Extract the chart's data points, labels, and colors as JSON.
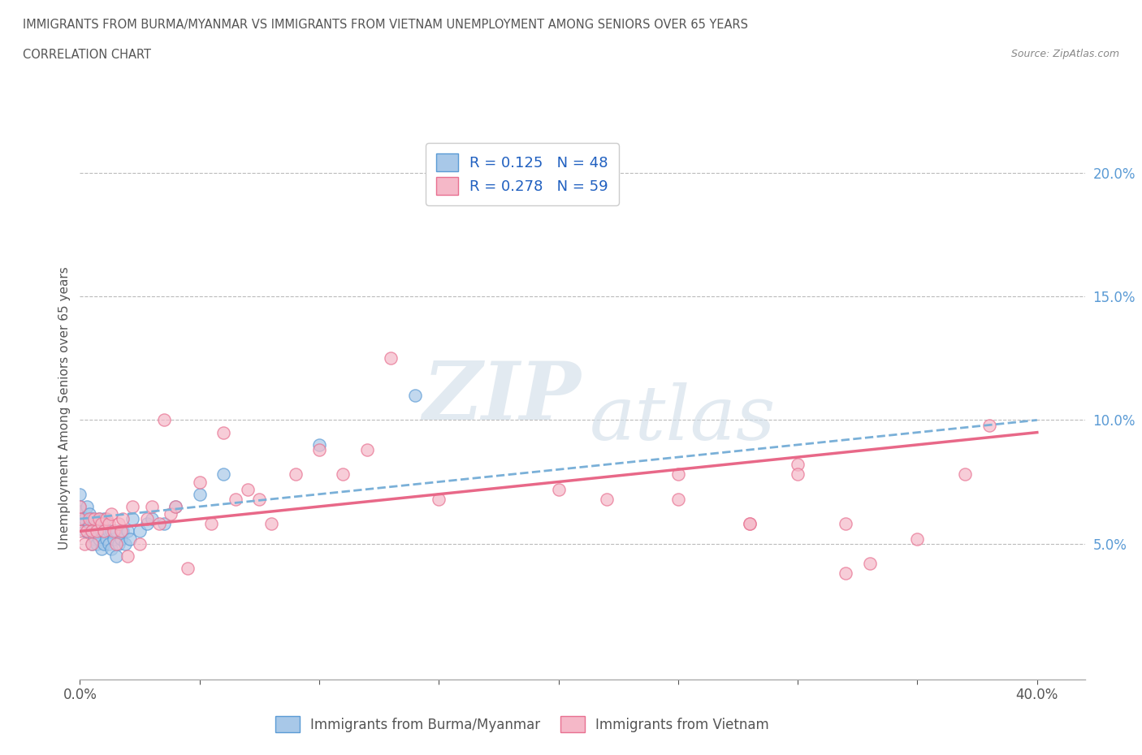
{
  "title_line1": "IMMIGRANTS FROM BURMA/MYANMAR VS IMMIGRANTS FROM VIETNAM UNEMPLOYMENT AMONG SENIORS OVER 65 YEARS",
  "title_line2": "CORRELATION CHART",
  "source_text": "Source: ZipAtlas.com",
  "ylabel": "Unemployment Among Seniors over 65 years",
  "xlim": [
    0.0,
    0.42
  ],
  "ylim": [
    -0.005,
    0.215
  ],
  "yticks": [
    0.05,
    0.1,
    0.15,
    0.2
  ],
  "ytick_labels": [
    "5.0%",
    "10.0%",
    "15.0%",
    "20.0%"
  ],
  "xtick_labels_left": "0.0%",
  "xtick_labels_right": "40.0%",
  "legend_r1": "R = 0.125",
  "legend_n1": "N = 48",
  "legend_r2": "R = 0.278",
  "legend_n2": "N = 59",
  "color_burma": "#a8c8e8",
  "color_vietnam": "#f5b8c8",
  "color_burma_edge": "#5b9bd5",
  "color_vietnam_edge": "#e87090",
  "color_burma_line": "#7ab0d8",
  "color_vietnam_line": "#e86888",
  "watermark_zip": "ZIP",
  "watermark_atlas": "atlas",
  "burma_x": [
    0.0,
    0.0,
    0.0,
    0.0,
    0.002,
    0.002,
    0.003,
    0.003,
    0.004,
    0.004,
    0.005,
    0.005,
    0.005,
    0.006,
    0.006,
    0.007,
    0.007,
    0.008,
    0.008,
    0.009,
    0.009,
    0.01,
    0.01,
    0.01,
    0.011,
    0.012,
    0.012,
    0.013,
    0.013,
    0.014,
    0.015,
    0.015,
    0.016,
    0.017,
    0.018,
    0.019,
    0.02,
    0.021,
    0.022,
    0.025,
    0.028,
    0.03,
    0.035,
    0.04,
    0.05,
    0.06,
    0.1,
    0.14
  ],
  "burma_y": [
    0.06,
    0.063,
    0.065,
    0.07,
    0.055,
    0.06,
    0.055,
    0.065,
    0.058,
    0.062,
    0.05,
    0.055,
    0.06,
    0.052,
    0.058,
    0.05,
    0.058,
    0.052,
    0.06,
    0.048,
    0.055,
    0.05,
    0.055,
    0.06,
    0.052,
    0.05,
    0.055,
    0.048,
    0.055,
    0.052,
    0.045,
    0.055,
    0.05,
    0.052,
    0.055,
    0.05,
    0.055,
    0.052,
    0.06,
    0.055,
    0.058,
    0.06,
    0.058,
    0.065,
    0.07,
    0.078,
    0.09,
    0.11
  ],
  "vietnam_x": [
    0.0,
    0.0,
    0.0,
    0.002,
    0.003,
    0.004,
    0.005,
    0.005,
    0.006,
    0.007,
    0.008,
    0.009,
    0.01,
    0.011,
    0.012,
    0.013,
    0.014,
    0.015,
    0.016,
    0.017,
    0.018,
    0.02,
    0.022,
    0.025,
    0.028,
    0.03,
    0.033,
    0.035,
    0.038,
    0.04,
    0.045,
    0.05,
    0.055,
    0.06,
    0.065,
    0.07,
    0.075,
    0.08,
    0.09,
    0.1,
    0.11,
    0.12,
    0.13,
    0.15,
    0.17,
    0.2,
    0.22,
    0.25,
    0.28,
    0.3,
    0.32,
    0.33,
    0.35,
    0.37,
    0.25,
    0.28,
    0.3,
    0.32,
    0.38
  ],
  "vietnam_y": [
    0.055,
    0.06,
    0.065,
    0.05,
    0.055,
    0.06,
    0.05,
    0.055,
    0.06,
    0.055,
    0.06,
    0.058,
    0.055,
    0.06,
    0.058,
    0.062,
    0.055,
    0.05,
    0.058,
    0.055,
    0.06,
    0.045,
    0.065,
    0.05,
    0.06,
    0.065,
    0.058,
    0.1,
    0.062,
    0.065,
    0.04,
    0.075,
    0.058,
    0.095,
    0.068,
    0.072,
    0.068,
    0.058,
    0.078,
    0.088,
    0.078,
    0.088,
    0.125,
    0.068,
    0.19,
    0.072,
    0.068,
    0.078,
    0.058,
    0.082,
    0.058,
    0.042,
    0.052,
    0.078,
    0.068,
    0.058,
    0.078,
    0.038,
    0.098
  ],
  "burma_line_x0": 0.0,
  "burma_line_x1": 0.4,
  "burma_line_y0": 0.06,
  "burma_line_y1": 0.1,
  "vietnam_line_x0": 0.0,
  "vietnam_line_x1": 0.4,
  "vietnam_line_y0": 0.055,
  "vietnam_line_y1": 0.095
}
